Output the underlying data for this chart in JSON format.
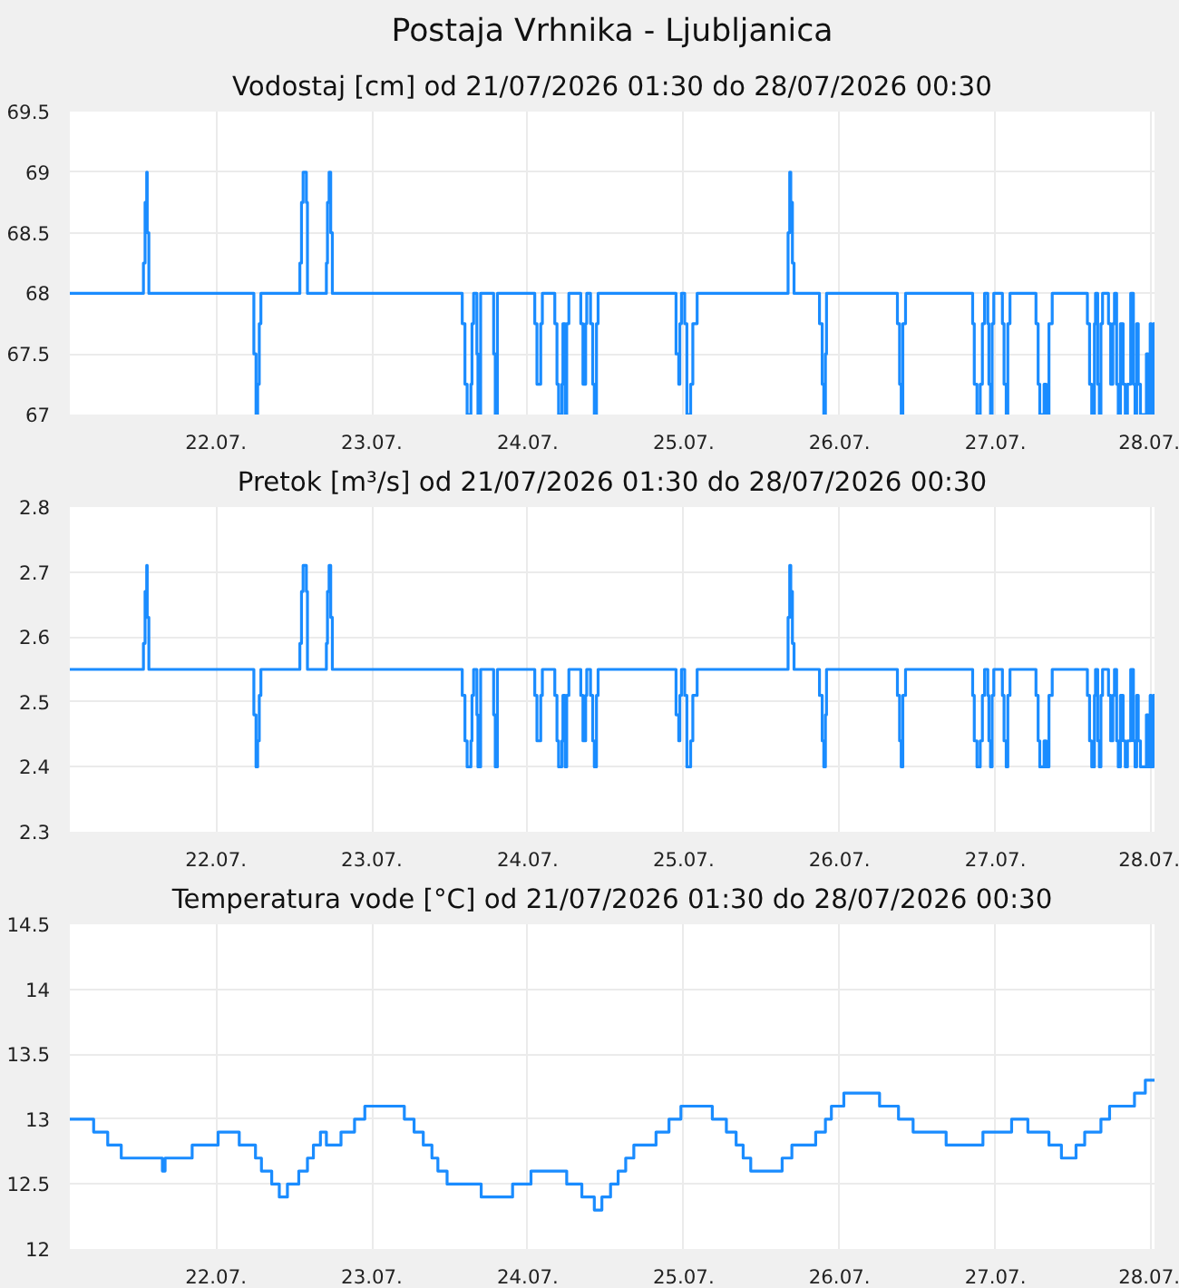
{
  "chart_data": [
    {
      "type": "step",
      "title": "Postaja Vrhnika - Ljubljanica",
      "subtitle": "Vodostaj [cm] od 21/07/2026 01:30 do 28/07/2026 00:30",
      "grid": true,
      "xlim": [
        "2026-07-21T01:30",
        "2026-07-28T00:30"
      ],
      "ylim": [
        67,
        69.5
      ],
      "yticks": [
        67,
        67.5,
        68,
        68.5,
        69,
        69.5
      ],
      "xticks": [
        {
          "value": "2026-07-22",
          "label": "22.07."
        },
        {
          "value": "2026-07-23",
          "label": "23.07."
        },
        {
          "value": "2026-07-24",
          "label": "24.07."
        },
        {
          "value": "2026-07-25",
          "label": "25.07."
        },
        {
          "value": "2026-07-26",
          "label": "26.07."
        },
        {
          "value": "2026-07-27",
          "label": "27.07."
        },
        {
          "value": "2026-07-28",
          "label": "28.07."
        }
      ],
      "x": [
        "2026-07-21T01:30",
        "2026-07-21T12:50",
        "2026-07-21T13:05",
        "2026-07-21T13:20",
        "2026-07-21T13:25",
        "2026-07-21T13:40",
        "2026-07-22T05:50",
        "2026-07-22T06:10",
        "2026-07-22T06:25",
        "2026-07-22T06:40",
        "2026-07-22T06:55",
        "2026-07-22T12:55",
        "2026-07-22T13:10",
        "2026-07-22T13:25",
        "2026-07-22T13:55",
        "2026-07-22T14:05",
        "2026-07-22T17:00",
        "2026-07-22T17:10",
        "2026-07-22T17:25",
        "2026-07-22T17:40",
        "2026-07-22T17:55",
        "2026-07-23T13:55",
        "2026-07-23T14:20",
        "2026-07-23T14:40",
        "2026-07-23T15:15",
        "2026-07-23T15:25",
        "2026-07-23T15:40",
        "2026-07-23T16:10",
        "2026-07-23T16:20",
        "2026-07-23T16:45",
        "2026-07-23T18:45",
        "2026-07-23T19:00",
        "2026-07-23T19:20",
        "2026-07-24T01:05",
        "2026-07-24T01:25",
        "2026-07-24T02:00",
        "2026-07-24T02:15",
        "2026-07-24T04:10",
        "2026-07-24T04:30",
        "2026-07-24T04:45",
        "2026-07-24T05:15",
        "2026-07-24T05:25",
        "2026-07-24T05:45",
        "2026-07-24T06:00",
        "2026-07-24T06:20",
        "2026-07-24T08:10",
        "2026-07-24T08:30",
        "2026-07-24T08:55",
        "2026-07-24T09:05",
        "2026-07-24T09:40",
        "2026-07-24T10:00",
        "2026-07-24T10:15",
        "2026-07-24T10:35",
        "2026-07-24T10:50",
        "2026-07-24T22:50",
        "2026-07-24T23:15",
        "2026-07-24T23:25",
        "2026-07-24T23:40",
        "2026-07-25T00:10",
        "2026-07-25T00:30",
        "2026-07-25T01:05",
        "2026-07-25T01:25",
        "2026-07-25T02:05",
        "2026-07-25T16:05",
        "2026-07-25T16:20",
        "2026-07-25T16:30",
        "2026-07-25T16:45",
        "2026-07-25T17:00",
        "2026-07-25T20:55",
        "2026-07-25T21:20",
        "2026-07-25T21:35",
        "2026-07-25T21:50",
        "2026-07-25T22:00",
        "2026-07-26T08:55",
        "2026-07-26T09:15",
        "2026-07-26T09:30",
        "2026-07-26T09:45",
        "2026-07-26T10:10",
        "2026-07-26T20:30",
        "2026-07-26T20:45",
        "2026-07-26T21:10",
        "2026-07-26T21:40",
        "2026-07-26T22:00",
        "2026-07-26T22:20",
        "2026-07-26T22:50",
        "2026-07-26T23:00",
        "2026-07-26T23:15",
        "2026-07-26T23:30",
        "2026-07-26T23:45",
        "2026-07-27T01:05",
        "2026-07-27T01:20",
        "2026-07-27T01:40",
        "2026-07-27T01:55",
        "2026-07-27T02:15",
        "2026-07-27T06:15",
        "2026-07-27T06:35",
        "2026-07-27T06:50",
        "2026-07-27T07:30",
        "2026-07-27T07:50",
        "2026-07-27T08:15",
        "2026-07-27T08:45",
        "2026-07-27T14:10",
        "2026-07-27T14:30",
        "2026-07-27T14:50",
        "2026-07-27T15:15",
        "2026-07-27T15:25",
        "2026-07-27T15:45",
        "2026-07-27T16:00",
        "2026-07-27T16:15",
        "2026-07-27T16:30",
        "2026-07-27T17:25",
        "2026-07-27T17:45",
        "2026-07-27T18:05",
        "2026-07-27T18:20",
        "2026-07-27T18:40",
        "2026-07-27T18:55",
        "2026-07-27T19:15",
        "2026-07-27T19:40",
        "2026-07-27T20:00",
        "2026-07-27T20:20",
        "2026-07-27T20:50",
        "2026-07-27T21:15",
        "2026-07-27T21:30",
        "2026-07-27T21:45",
        "2026-07-27T22:00",
        "2026-07-27T22:20",
        "2026-07-27T23:15",
        "2026-07-27T23:30",
        "2026-07-27T23:50",
        "2026-07-28T00:00",
        "2026-07-28T00:20",
        "2026-07-28T00:30"
      ],
      "series": [
        {
          "color": "#1a8cff",
          "values": [
            68,
            68.25,
            68.75,
            69,
            68.5,
            68,
            67.5,
            67,
            67.25,
            67.75,
            68,
            68.25,
            68.75,
            69,
            68.75,
            68,
            68.25,
            68.75,
            69,
            68.5,
            68,
            67.75,
            67.25,
            67,
            67.25,
            67.75,
            68,
            67.5,
            67,
            68,
            67.5,
            67,
            68,
            67.75,
            67.25,
            67.75,
            68,
            67.75,
            67.25,
            67,
            67.25,
            67.75,
            67,
            67.75,
            68,
            67.75,
            67.25,
            67.75,
            68,
            67.75,
            67.25,
            67,
            67.75,
            68,
            67.5,
            67.25,
            67.75,
            68,
            67.75,
            67,
            67.25,
            67.75,
            68,
            68.5,
            69,
            68.75,
            68.25,
            68,
            67.75,
            67.25,
            67,
            67.5,
            68,
            67.75,
            67.25,
            67,
            67.75,
            68,
            67.75,
            67.25,
            67,
            67.25,
            67.75,
            68,
            67.75,
            67.25,
            67,
            67.75,
            68,
            67.75,
            67.25,
            67,
            67.75,
            68,
            67.75,
            67.25,
            67,
            67.25,
            67,
            67.75,
            68,
            67.75,
            67.25,
            67,
            67.75,
            68,
            67.25,
            67,
            67.75,
            68,
            67.75,
            67.25,
            67.75,
            68,
            67.25,
            67,
            67.75,
            67.25,
            67,
            67.25,
            68,
            67.25,
            67,
            67.75,
            67.25,
            67,
            67.5,
            67,
            67.75,
            67,
            67.75,
            67.25
          ]
        }
      ]
    },
    {
      "type": "step",
      "title": "Pretok [m³/s] od 21/07/2026 01:30 do 28/07/2026 00:30",
      "grid": true,
      "xlim": [
        "2026-07-21T01:30",
        "2026-07-28T00:30"
      ],
      "ylim": [
        2.3,
        2.8
      ],
      "yticks": [
        2.3,
        2.4,
        2.5,
        2.6,
        2.7,
        2.8
      ],
      "xticks": [
        {
          "value": "2026-07-22",
          "label": "22.07."
        },
        {
          "value": "2026-07-23",
          "label": "23.07."
        },
        {
          "value": "2026-07-24",
          "label": "24.07."
        },
        {
          "value": "2026-07-25",
          "label": "25.07."
        },
        {
          "value": "2026-07-26",
          "label": "26.07."
        },
        {
          "value": "2026-07-27",
          "label": "27.07."
        },
        {
          "value": "2026-07-28",
          "label": "28.07."
        }
      ],
      "x": [
        "2026-07-21T01:30",
        "2026-07-21T12:50",
        "2026-07-21T13:05",
        "2026-07-21T13:20",
        "2026-07-21T13:25",
        "2026-07-21T13:40",
        "2026-07-22T05:50",
        "2026-07-22T06:10",
        "2026-07-22T06:25",
        "2026-07-22T06:40",
        "2026-07-22T06:55",
        "2026-07-22T12:55",
        "2026-07-22T13:10",
        "2026-07-22T13:25",
        "2026-07-22T13:55",
        "2026-07-22T14:05",
        "2026-07-22T17:00",
        "2026-07-22T17:10",
        "2026-07-22T17:25",
        "2026-07-22T17:40",
        "2026-07-22T17:55",
        "2026-07-23T13:55",
        "2026-07-23T14:20",
        "2026-07-23T14:40",
        "2026-07-23T15:15",
        "2026-07-23T15:25",
        "2026-07-23T15:40",
        "2026-07-23T16:10",
        "2026-07-23T16:20",
        "2026-07-23T16:45",
        "2026-07-23T18:45",
        "2026-07-23T19:00",
        "2026-07-23T19:20",
        "2026-07-24T01:05",
        "2026-07-24T01:25",
        "2026-07-24T02:00",
        "2026-07-24T02:15",
        "2026-07-24T04:10",
        "2026-07-24T04:30",
        "2026-07-24T04:45",
        "2026-07-24T05:15",
        "2026-07-24T05:25",
        "2026-07-24T05:45",
        "2026-07-24T06:00",
        "2026-07-24T06:20",
        "2026-07-24T08:10",
        "2026-07-24T08:30",
        "2026-07-24T08:55",
        "2026-07-24T09:05",
        "2026-07-24T09:40",
        "2026-07-24T10:00",
        "2026-07-24T10:15",
        "2026-07-24T10:35",
        "2026-07-24T10:50",
        "2026-07-24T22:50",
        "2026-07-24T23:15",
        "2026-07-24T23:25",
        "2026-07-24T23:40",
        "2026-07-25T00:10",
        "2026-07-25T00:30",
        "2026-07-25T01:05",
        "2026-07-25T01:25",
        "2026-07-25T02:05",
        "2026-07-25T16:05",
        "2026-07-25T16:20",
        "2026-07-25T16:30",
        "2026-07-25T16:45",
        "2026-07-25T17:00",
        "2026-07-25T20:55",
        "2026-07-25T21:20",
        "2026-07-25T21:35",
        "2026-07-25T21:50",
        "2026-07-25T22:00",
        "2026-07-26T08:55",
        "2026-07-26T09:15",
        "2026-07-26T09:30",
        "2026-07-26T09:45",
        "2026-07-26T10:10",
        "2026-07-26T20:30",
        "2026-07-26T20:45",
        "2026-07-26T21:10",
        "2026-07-26T21:40",
        "2026-07-26T22:00",
        "2026-07-26T22:20",
        "2026-07-26T22:50",
        "2026-07-26T23:00",
        "2026-07-26T23:15",
        "2026-07-26T23:30",
        "2026-07-26T23:45",
        "2026-07-27T01:05",
        "2026-07-27T01:20",
        "2026-07-27T01:40",
        "2026-07-27T01:55",
        "2026-07-27T02:15",
        "2026-07-27T06:15",
        "2026-07-27T06:35",
        "2026-07-27T06:50",
        "2026-07-27T07:30",
        "2026-07-27T07:50",
        "2026-07-27T08:15",
        "2026-07-27T08:45",
        "2026-07-27T14:10",
        "2026-07-27T14:30",
        "2026-07-27T14:50",
        "2026-07-27T15:15",
        "2026-07-27T15:25",
        "2026-07-27T15:45",
        "2026-07-27T16:00",
        "2026-07-27T16:15",
        "2026-07-27T16:30",
        "2026-07-27T17:25",
        "2026-07-27T17:45",
        "2026-07-27T18:05",
        "2026-07-27T18:20",
        "2026-07-27T18:40",
        "2026-07-27T18:55",
        "2026-07-27T19:15",
        "2026-07-27T19:40",
        "2026-07-27T20:00",
        "2026-07-27T20:20",
        "2026-07-27T20:50",
        "2026-07-27T21:15",
        "2026-07-27T21:30",
        "2026-07-27T21:45",
        "2026-07-27T22:00",
        "2026-07-27T22:20",
        "2026-07-27T23:15",
        "2026-07-27T23:30",
        "2026-07-27T23:50",
        "2026-07-28T00:00",
        "2026-07-28T00:20",
        "2026-07-28T00:30"
      ],
      "series": [
        {
          "color": "#1a8cff",
          "values": [
            2.55,
            2.59,
            2.67,
            2.71,
            2.63,
            2.55,
            2.48,
            2.4,
            2.44,
            2.51,
            2.55,
            2.59,
            2.67,
            2.71,
            2.67,
            2.55,
            2.59,
            2.67,
            2.71,
            2.63,
            2.55,
            2.51,
            2.44,
            2.4,
            2.44,
            2.51,
            2.55,
            2.48,
            2.4,
            2.55,
            2.48,
            2.4,
            2.55,
            2.51,
            2.44,
            2.51,
            2.55,
            2.51,
            2.44,
            2.4,
            2.44,
            2.51,
            2.4,
            2.51,
            2.55,
            2.51,
            2.44,
            2.51,
            2.55,
            2.51,
            2.44,
            2.4,
            2.51,
            2.55,
            2.48,
            2.44,
            2.51,
            2.55,
            2.51,
            2.4,
            2.44,
            2.51,
            2.55,
            2.63,
            2.71,
            2.67,
            2.59,
            2.55,
            2.51,
            2.44,
            2.4,
            2.48,
            2.55,
            2.51,
            2.44,
            2.4,
            2.51,
            2.55,
            2.51,
            2.44,
            2.4,
            2.44,
            2.51,
            2.55,
            2.51,
            2.44,
            2.4,
            2.51,
            2.55,
            2.51,
            2.44,
            2.4,
            2.51,
            2.55,
            2.51,
            2.44,
            2.4,
            2.44,
            2.4,
            2.51,
            2.55,
            2.51,
            2.44,
            2.4,
            2.51,
            2.55,
            2.44,
            2.4,
            2.51,
            2.55,
            2.51,
            2.44,
            2.51,
            2.55,
            2.44,
            2.4,
            2.51,
            2.44,
            2.4,
            2.44,
            2.55,
            2.44,
            2.4,
            2.51,
            2.44,
            2.4,
            2.48,
            2.4,
            2.51,
            2.4,
            2.51,
            2.44
          ]
        }
      ]
    },
    {
      "type": "step",
      "title": "Temperatura vode [°C] od 21/07/2026 01:30 do 28/07/2026 00:30",
      "grid": true,
      "xlim": [
        "2026-07-21T01:30",
        "2026-07-28T00:30"
      ],
      "ylim": [
        12,
        14.5
      ],
      "yticks": [
        12,
        12.5,
        13,
        13.5,
        14,
        14.5
      ],
      "xticks": [
        {
          "value": "2026-07-22",
          "label": "22.07."
        },
        {
          "value": "2026-07-23",
          "label": "23.07."
        },
        {
          "value": "2026-07-24",
          "label": "24.07."
        },
        {
          "value": "2026-07-25",
          "label": "25.07."
        },
        {
          "value": "2026-07-26",
          "label": "26.07."
        },
        {
          "value": "2026-07-27",
          "label": "27.07."
        },
        {
          "value": "2026-07-28",
          "label": "28.07."
        }
      ],
      "x": [
        "2026-07-21T01:30",
        "2026-07-21T05:10",
        "2026-07-21T07:20",
        "2026-07-21T09:25",
        "2026-07-21T15:45",
        "2026-07-21T16:10",
        "2026-07-21T20:20",
        "2026-07-22T00:20",
        "2026-07-22T03:35",
        "2026-07-22T06:05",
        "2026-07-22T07:00",
        "2026-07-22T08:35",
        "2026-07-22T09:45",
        "2026-07-22T11:00",
        "2026-07-22T12:45",
        "2026-07-22T14:05",
        "2026-07-22T15:00",
        "2026-07-22T16:05",
        "2026-07-22T17:00",
        "2026-07-22T19:15",
        "2026-07-22T21:20",
        "2026-07-22T22:55",
        "2026-07-23T05:00",
        "2026-07-23T06:30",
        "2026-07-23T07:55",
        "2026-07-23T09:15",
        "2026-07-23T10:10",
        "2026-07-23T11:35",
        "2026-07-23T16:50",
        "2026-07-23T21:40",
        "2026-07-24T00:30",
        "2026-07-24T06:00",
        "2026-07-24T08:20",
        "2026-07-24T10:15",
        "2026-07-24T11:25",
        "2026-07-24T12:45",
        "2026-07-24T13:55",
        "2026-07-24T15:05",
        "2026-07-24T16:20",
        "2026-07-24T19:45",
        "2026-07-24T21:45",
        "2026-07-24T23:35",
        "2026-07-25T04:25",
        "2026-07-25T06:35",
        "2026-07-25T08:05",
        "2026-07-25T09:10",
        "2026-07-25T10:20",
        "2026-07-25T15:10",
        "2026-07-25T16:40",
        "2026-07-25T20:20",
        "2026-07-25T21:50",
        "2026-07-25T22:45",
        "2026-07-26T00:40",
        "2026-07-26T06:10",
        "2026-07-26T09:05",
        "2026-07-26T11:20",
        "2026-07-26T16:25",
        "2026-07-26T22:05",
        "2026-07-27T02:30",
        "2026-07-27T05:00",
        "2026-07-27T08:15",
        "2026-07-27T10:10",
        "2026-07-27T12:25",
        "2026-07-27T13:45",
        "2026-07-27T16:15",
        "2026-07-27T17:35",
        "2026-07-27T21:25",
        "2026-07-27T23:05",
        "2026-07-28T00:30"
      ],
      "series": [
        {
          "color": "#1a8cff",
          "values": [
            13.0,
            12.9,
            12.8,
            12.7,
            12.6,
            12.7,
            12.8,
            12.9,
            12.8,
            12.7,
            12.6,
            12.5,
            12.4,
            12.5,
            12.6,
            12.7,
            12.8,
            12.9,
            12.8,
            12.9,
            13.0,
            13.1,
            13.0,
            12.9,
            12.8,
            12.7,
            12.6,
            12.5,
            12.4,
            12.5,
            12.6,
            12.5,
            12.4,
            12.3,
            12.4,
            12.5,
            12.6,
            12.7,
            12.8,
            12.9,
            13.0,
            13.1,
            13.0,
            12.9,
            12.8,
            12.7,
            12.6,
            12.7,
            12.8,
            12.9,
            13.0,
            13.1,
            13.2,
            13.1,
            13.0,
            12.9,
            12.8,
            12.9,
            13.0,
            12.9,
            12.8,
            12.7,
            12.8,
            12.9,
            13.0,
            13.1,
            13.2,
            13.3,
            13.3
          ]
        }
      ]
    }
  ]
}
